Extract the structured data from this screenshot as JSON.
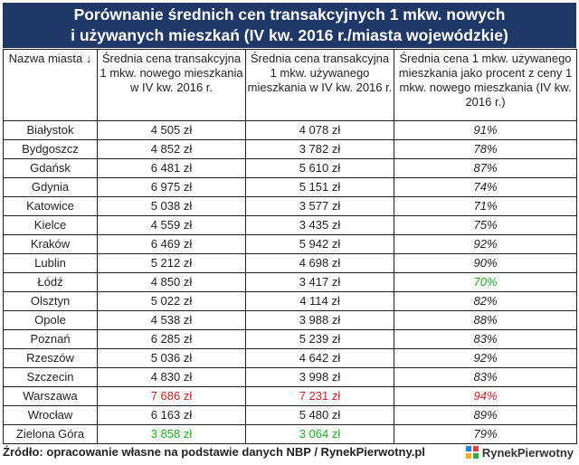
{
  "title": {
    "line1": "Porównanie średnich cen transakcyjnych 1 mkw. nowych",
    "line2": "i używanych mieszkań (IV kw. 2016 r./miasta wojewódzkie)"
  },
  "table": {
    "headers": [
      "Nazwa miasta ↓",
      "Średnia cena transakcyjna 1 mkw. nowego mieszkania w IV kw. 2016 r.",
      "Średnia cena transakcyjna 1 mkw. używanego mieszkania w IV kw. 2016 r.",
      "Średnia cena 1 mkw. używanego mieszkania jako procent z ceny 1 mkw. nowego mieszkania (IV kw. 2016 r.)"
    ],
    "rows": [
      {
        "city": "Białystok",
        "new": "4 505 zł",
        "used": "4 078 zł",
        "pct": "91%",
        "hl_new": "",
        "hl_used": "",
        "hl_pct": ""
      },
      {
        "city": "Bydgoszcz",
        "new": "4 852 zł",
        "used": "3 782 zł",
        "pct": "78%",
        "hl_new": "",
        "hl_used": "",
        "hl_pct": ""
      },
      {
        "city": "Gdańsk",
        "new": "6 481 zł",
        "used": "5 610 zł",
        "pct": "87%",
        "hl_new": "",
        "hl_used": "",
        "hl_pct": ""
      },
      {
        "city": "Gdynia",
        "new": "6 975 zł",
        "used": "5 151 zł",
        "pct": "74%",
        "hl_new": "",
        "hl_used": "",
        "hl_pct": ""
      },
      {
        "city": "Katowice",
        "new": "5 038 zł",
        "used": "3 577 zł",
        "pct": "71%",
        "hl_new": "",
        "hl_used": "",
        "hl_pct": ""
      },
      {
        "city": "Kielce",
        "new": "4 559 zł",
        "used": "3 435 zł",
        "pct": "75%",
        "hl_new": "",
        "hl_used": "",
        "hl_pct": ""
      },
      {
        "city": "Kraków",
        "new": "6 469 zł",
        "used": "5 942 zł",
        "pct": "92%",
        "hl_new": "",
        "hl_used": "",
        "hl_pct": ""
      },
      {
        "city": "Lublin",
        "new": "5 212 zł",
        "used": "4 698 zł",
        "pct": "90%",
        "hl_new": "",
        "hl_used": "",
        "hl_pct": ""
      },
      {
        "city": "Łódź",
        "new": "4 850 zł",
        "used": "3 417 zł",
        "pct": "70%",
        "hl_new": "",
        "hl_used": "",
        "hl_pct": "lo"
      },
      {
        "city": "Olsztyn",
        "new": "5 022 zł",
        "used": "4 114 zł",
        "pct": "82%",
        "hl_new": "",
        "hl_used": "",
        "hl_pct": ""
      },
      {
        "city": "Opole",
        "new": "4 538 zł",
        "used": "3 988 zł",
        "pct": "88%",
        "hl_new": "",
        "hl_used": "",
        "hl_pct": ""
      },
      {
        "city": "Poznań",
        "new": "6 285 zł",
        "used": "5 239 zł",
        "pct": "83%",
        "hl_new": "",
        "hl_used": "",
        "hl_pct": ""
      },
      {
        "city": "Rzeszów",
        "new": "5 036 zł",
        "used": "4 642 zł",
        "pct": "92%",
        "hl_new": "",
        "hl_used": "",
        "hl_pct": ""
      },
      {
        "city": "Szczecin",
        "new": "4 830 zł",
        "used": "3 998 zł",
        "pct": "83%",
        "hl_new": "",
        "hl_used": "",
        "hl_pct": ""
      },
      {
        "city": "Warszawa",
        "new": "7 686 zł",
        "used": "7 231 zł",
        "pct": "94%",
        "hl_new": "hi",
        "hl_used": "hi",
        "hl_pct": "hi"
      },
      {
        "city": "Wrocław",
        "new": "6 163 zł",
        "used": "5 480 zł",
        "pct": "89%",
        "hl_new": "",
        "hl_used": "",
        "hl_pct": ""
      },
      {
        "city": "Zielona Góra",
        "new": "3 858 zł",
        "used": "3 064 zł",
        "pct": "79%",
        "hl_new": "lo",
        "hl_used": "lo",
        "hl_pct": ""
      }
    ]
  },
  "footer": {
    "source": "Źródło: opracowanie własne na podstawie danych NBP / RynekPierwotny.pl"
  },
  "logo": {
    "text": "RynekPierwotny"
  },
  "colors": {
    "title_bg": "#1f3868",
    "highlight_high": "#cc2222",
    "highlight_low": "#22aa22"
  }
}
